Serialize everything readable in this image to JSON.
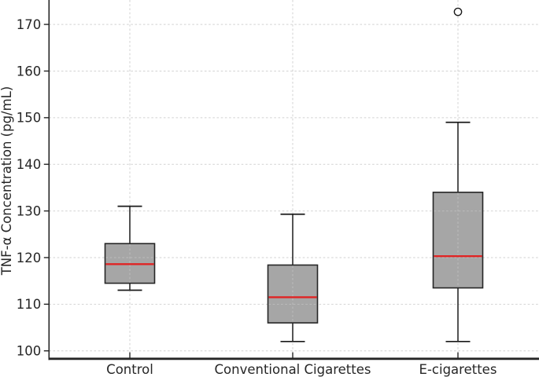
{
  "figure": {
    "background": "#ffffff"
  },
  "chart_data": {
    "type": "boxplot",
    "title": "",
    "xlabel": "",
    "ylabel": "TNF-α Concentration (pg/mL)",
    "categories": [
      "Control",
      "Conventional Cigarettes",
      "E-cigarettes"
    ],
    "y_ticks": [
      100,
      110,
      120,
      130,
      140,
      150,
      160,
      170
    ],
    "ylim": [
      98.3,
      175.2
    ],
    "grid": true,
    "legend": false,
    "series": [
      {
        "name": "Control",
        "whisker_low": 113,
        "q1": 114.5,
        "median": 118.6,
        "q3": 123,
        "whisker_high": 131,
        "outliers": []
      },
      {
        "name": "Conventional Cigarettes",
        "whisker_low": 102,
        "q1": 106,
        "median": 111.5,
        "q3": 118.4,
        "whisker_high": 129.3,
        "outliers": []
      },
      {
        "name": "E-cigarettes",
        "whisker_low": 102,
        "q1": 113.5,
        "median": 120.3,
        "q3": 134,
        "whisker_high": 149,
        "outliers": [
          172.7
        ]
      }
    ],
    "colors": {
      "box_fill": "#a6a6a6",
      "box_edge": "#262626",
      "whisker": "#1a1a1a",
      "median": "#e02424",
      "grid": "#d2d2d2",
      "grid_over_box": "#c4c4c4",
      "axis": "#262626",
      "text": "#262626",
      "outlier_fill": "#ffffff",
      "outlier_edge": "#1a1a1a",
      "background": "#ffffff"
    }
  }
}
